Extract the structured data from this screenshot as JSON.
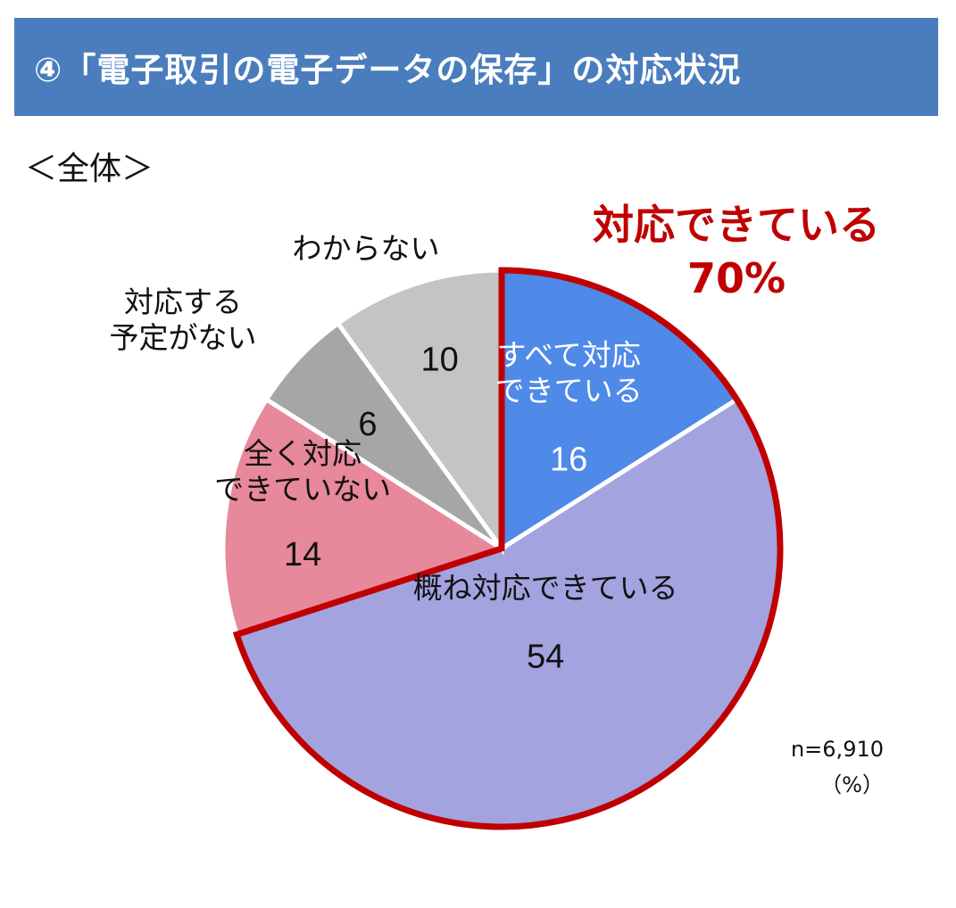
{
  "header": {
    "title": "④「電子取引の電子データの保存」の対応状況"
  },
  "subtitle": "＜全体＞",
  "callout": {
    "line1": "対応できている",
    "line2": "70%"
  },
  "note": {
    "n": "n=6,910",
    "unit": "（%）"
  },
  "colors": {
    "banner": "#4a7dbd",
    "highlight": "#c00000"
  },
  "chart_data": {
    "type": "pie",
    "unit": "%",
    "start": "12 o'clock, clockwise",
    "slices": [
      {
        "label": [
          "すべて対応",
          "できている"
        ],
        "value": 16,
        "color": "#4f8ae8",
        "label_color": "#ffffff",
        "highlighted": true
      },
      {
        "label": [
          "概ね対応できている"
        ],
        "value": 54,
        "color": "#a3a3e0",
        "label_color": "#111111",
        "highlighted": true
      },
      {
        "label": [
          "全く対応",
          "できていない"
        ],
        "value": 14,
        "color": "#e8889b",
        "label_color": "#111111",
        "highlighted": false
      },
      {
        "label": [
          "対応する",
          "予定がない"
        ],
        "value": 6,
        "color": "#a6a6a6",
        "label_color": "#111111",
        "highlighted": false
      },
      {
        "label": [
          "わからない"
        ],
        "value": 10,
        "color": "#c4c4c4",
        "label_color": "#111111",
        "highlighted": false
      }
    ],
    "highlight_group": {
      "label": "対応できている",
      "value": 70
    }
  }
}
